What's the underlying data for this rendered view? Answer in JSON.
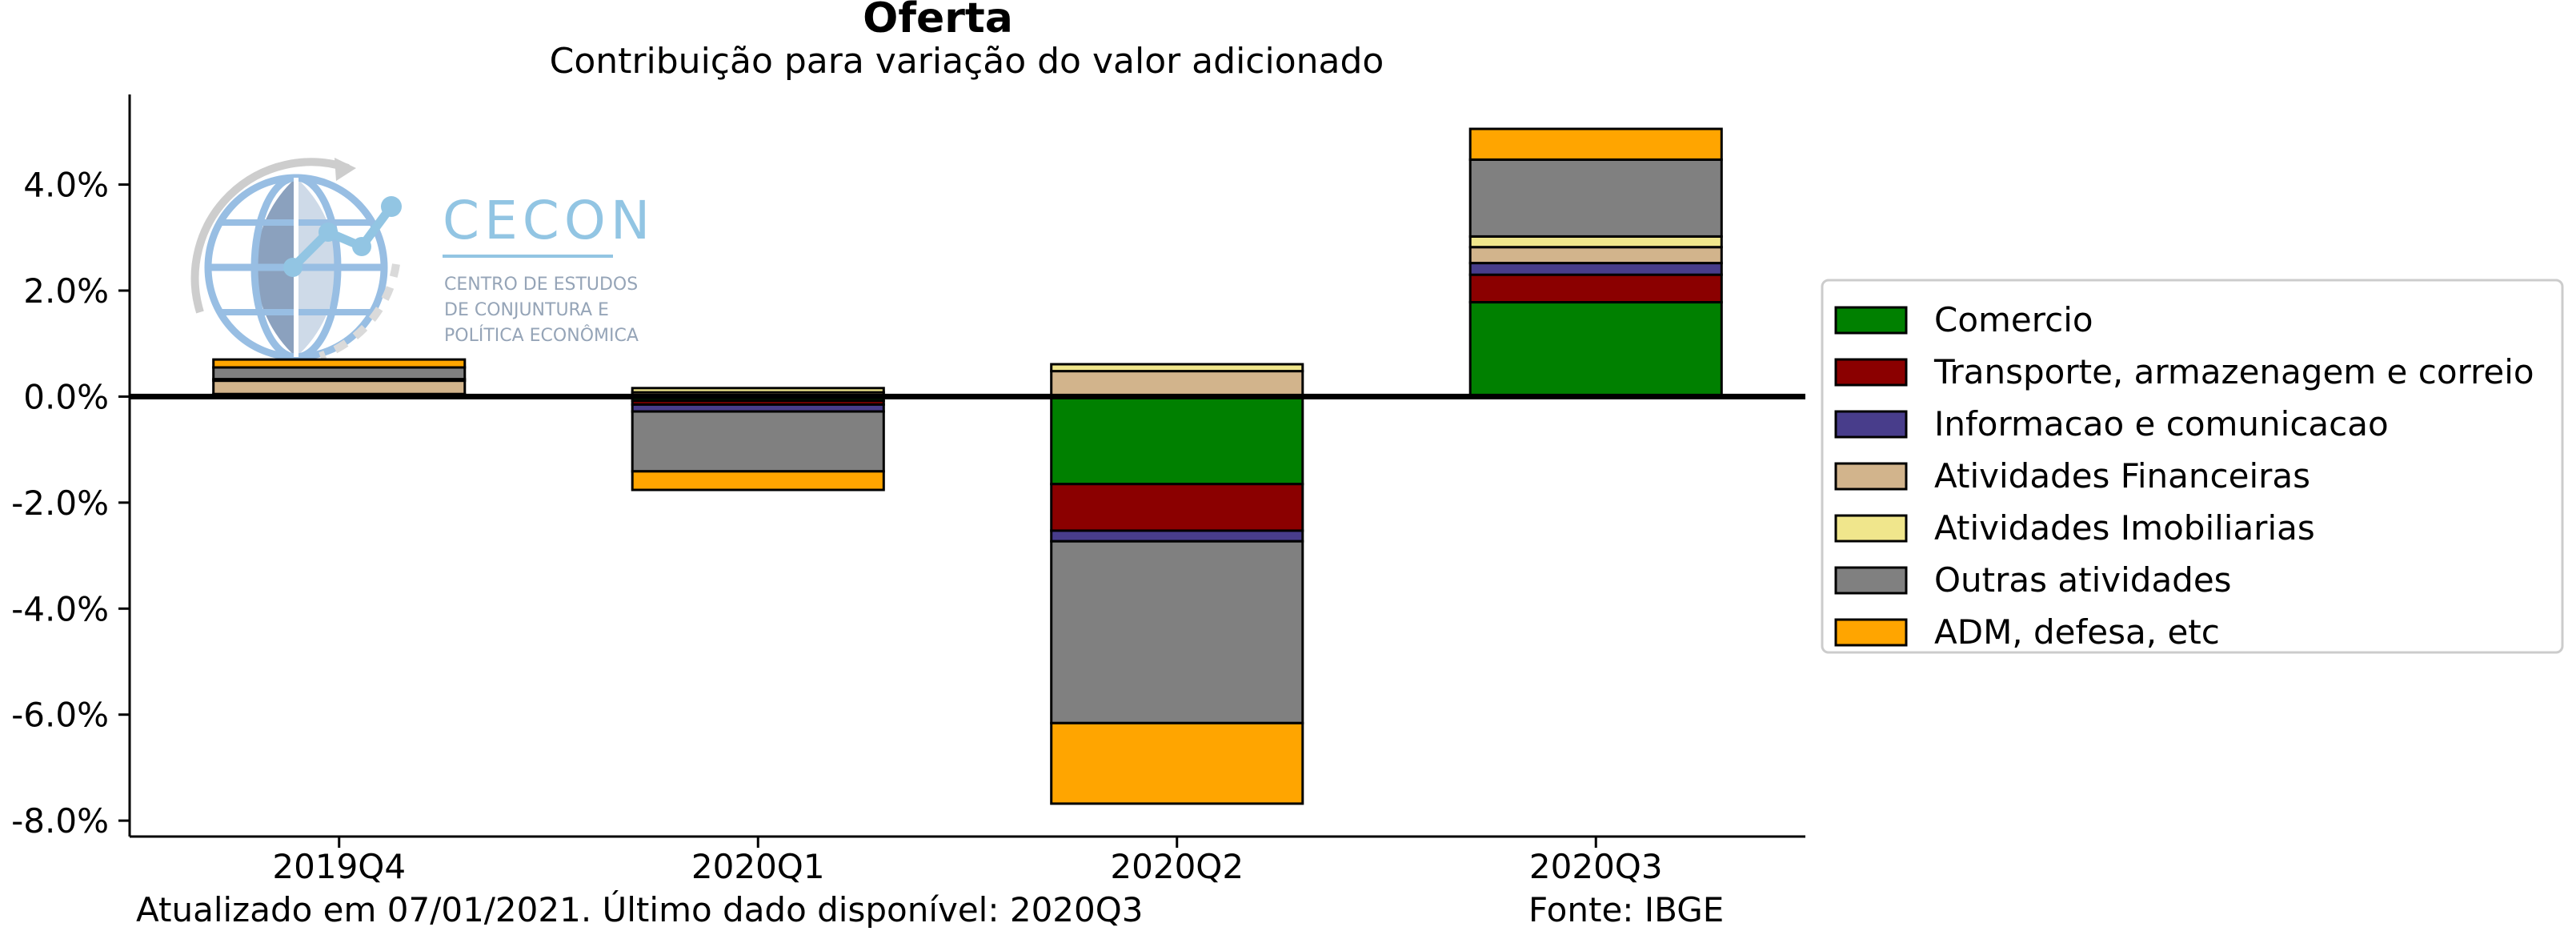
{
  "chart_data": {
    "type": "bar",
    "stacked": true,
    "title": "Oferta",
    "subtitle": "Contribuição para variação do valor adicionado",
    "categories": [
      "2019Q4",
      "2020Q1",
      "2020Q2",
      "2020Q3"
    ],
    "ylim": [
      -8.3,
      5.7
    ],
    "yticks": [
      -8.0,
      -6.0,
      -4.0,
      -2.0,
      0.0,
      2.0,
      4.0
    ],
    "ytick_labels": [
      "-8.0%",
      "-6.0%",
      "-4.0%",
      "-2.0%",
      "0.0%",
      "2.0%",
      "4.0%"
    ],
    "grid": false,
    "legend_position": "right",
    "series": [
      {
        "name": "Comercio",
        "color": "#008000",
        "values": [
          0.02,
          -0.08,
          -1.65,
          1.78
        ]
      },
      {
        "name": "Transporte, armazenagem e correio",
        "color": "#8b0000",
        "values": [
          0.01,
          -0.07,
          -0.88,
          0.52
        ]
      },
      {
        "name": "Informacao e comunicacao",
        "color": "#483d8b",
        "values": [
          0.02,
          -0.13,
          -0.2,
          0.22
        ]
      },
      {
        "name": "Atividades Financeiras",
        "color": "#d2b48c",
        "values": [
          0.25,
          0.08,
          0.48,
          0.3
        ]
      },
      {
        "name": "Atividades Imobiliarias",
        "color": "#f0e68c",
        "values": [
          0.03,
          0.08,
          0.13,
          0.2
        ]
      },
      {
        "name": "Outras atividades",
        "color": "#808080",
        "values": [
          0.22,
          -1.13,
          -3.43,
          1.45
        ]
      },
      {
        "name": "ADM, defesa, etc",
        "color": "#ffa500",
        "values": [
          0.15,
          -0.35,
          -1.52,
          0.58
        ]
      }
    ]
  },
  "footer": {
    "updated": "Atualizado em 07/01/2021. Último dado disponível: 2020Q3",
    "source": "Fonte: IBGE"
  },
  "logo": {
    "name": "CECON",
    "line1": "CENTRO DE ESTUDOS",
    "line2": "DE CONJUNTURA E",
    "line3": "POLÍTICA ECONÔMICA",
    "color": "#87bfe0"
  }
}
